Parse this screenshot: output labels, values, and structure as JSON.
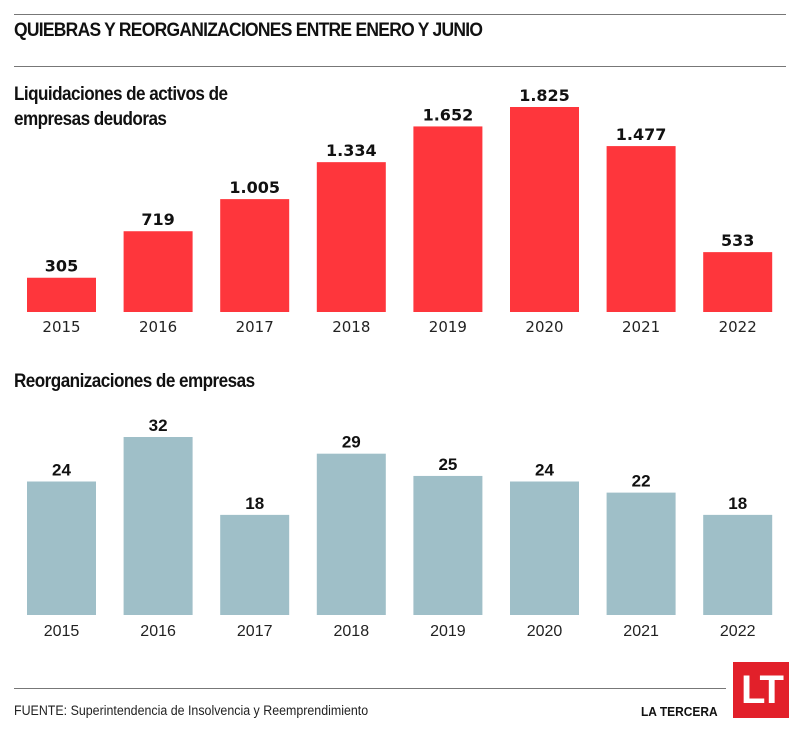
{
  "header": {
    "title": "QUIEBRAS Y REORGANIZACIONES ENTRE ENERO Y JUNIO"
  },
  "colors": {
    "liquidaciones_bar": "#fe363c",
    "reorganizaciones_bar": "#9fbfc8",
    "logo_bg": "#e2202a",
    "rule": "#777777"
  },
  "chart_data": [
    {
      "type": "bar",
      "title_lines": [
        "Liquidaciones de activos de",
        "empresas deudoras"
      ],
      "categories": [
        "2015",
        "2016",
        "2017",
        "2018",
        "2019",
        "2020",
        "2021",
        "2022"
      ],
      "values": [
        305,
        719,
        1005,
        1334,
        1652,
        1825,
        1477,
        533
      ],
      "value_labels": [
        "305",
        "719",
        "1.005",
        "1.334",
        "1.652",
        "1.825",
        "1.477",
        "533"
      ],
      "xlabel": "",
      "ylabel": "",
      "ylim": [
        0,
        1825
      ],
      "grid": false,
      "legend": "none"
    },
    {
      "type": "bar",
      "title_lines": [
        "Reorganizaciones de empresas"
      ],
      "categories": [
        "2015",
        "2016",
        "2017",
        "2018",
        "2019",
        "2020",
        "2021",
        "2022"
      ],
      "values": [
        24,
        32,
        18,
        29,
        25,
        24,
        22,
        18
      ],
      "value_labels": [
        "24",
        "32",
        "18",
        "29",
        "25",
        "24",
        "22",
        "18"
      ],
      "xlabel": "",
      "ylabel": "",
      "ylim": [
        0,
        32
      ],
      "grid": false,
      "legend": "none"
    }
  ],
  "footer": {
    "source": "FUENTE: Superintendencia de Insolvencia y Reemprendimiento",
    "brand": "LA TERCERA",
    "logo_text": "LT"
  }
}
